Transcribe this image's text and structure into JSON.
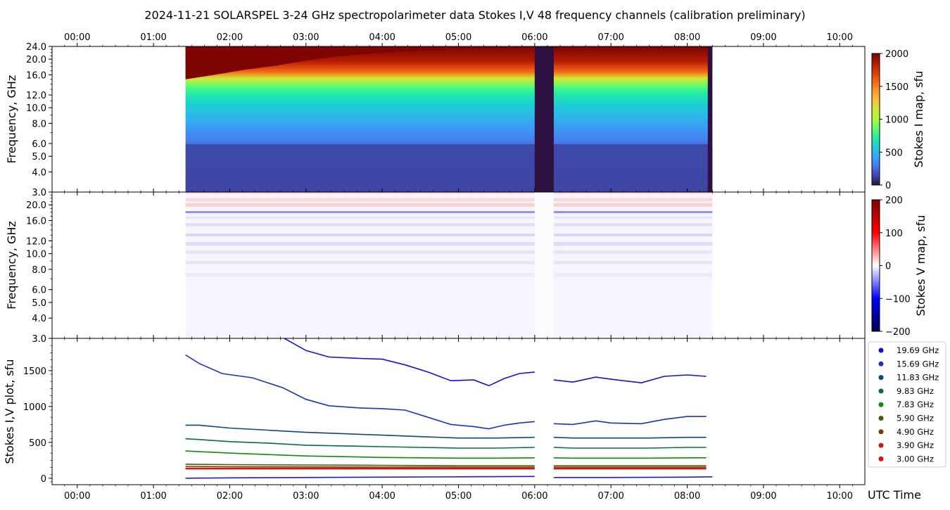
{
  "chart_data": [
    {
      "panel": "stokes-i-map",
      "type": "heatmap",
      "title": "2024-11-21  SOLARSPEL  3-24 GHz spectropolarimeter data   Stokes I,V   48 frequency channels   (calibration preliminary)",
      "ylabel": "Frequency, GHz",
      "colorbar_label": "Stokes I map, sfu",
      "colorbar_ticks": [
        "2000",
        "1500",
        "1000",
        "500",
        "0"
      ],
      "clim": [
        0,
        2000
      ],
      "colormap": "turbo",
      "ylim": [
        3.0,
        24.0
      ],
      "yscale": "log",
      "ytick_labels": [
        "24.0",
        "20.0",
        "16.0",
        "12.0",
        "10.0",
        "8.0",
        "6.0",
        "5.0",
        "4.0",
        "3.0"
      ],
      "xtick_labels": [
        "00:00",
        "01:00",
        "02:00",
        "03:00",
        "04:00",
        "05:00",
        "06:00",
        "07:00",
        "08:00",
        "09:00",
        "10:00"
      ],
      "xlim_hours": [
        -0.33,
        10.33
      ],
      "data_start_hour": 1.42,
      "data_end_hour": 8.33,
      "gaps_hours": [
        [
          6.0,
          6.25
        ],
        [
          8.27,
          8.33
        ]
      ]
    },
    {
      "panel": "stokes-v-map",
      "type": "heatmap",
      "ylabel": "Frequency, GHz",
      "colorbar_label": "Stokes V map, sfu",
      "colorbar_ticks": [
        "200",
        "100",
        "0",
        "−100",
        "−200"
      ],
      "clim": [
        -200,
        200
      ],
      "colormap": "seismic",
      "ylim": [
        3.0,
        24.0
      ],
      "yscale": "log",
      "ytick_labels": [
        "20.0",
        "16.0",
        "12.0",
        "10.0",
        "8.0",
        "6.0",
        "5.0",
        "4.0",
        "3.0"
      ]
    },
    {
      "panel": "stokes-iv-plot",
      "type": "line",
      "ylabel": "Stokes I,V plot, sfu",
      "xlabel": "UTC Time",
      "ylim": [
        -90,
        1950
      ],
      "ytick_labels": [
        "1500",
        "1000",
        "500",
        "0"
      ],
      "xtick_labels": [
        "00:00",
        "01:00",
        "02:00",
        "03:00",
        "04:00",
        "05:00",
        "06:00",
        "07:00",
        "08:00",
        "09:00",
        "10:00"
      ],
      "legend_position": "right",
      "series": [
        {
          "name": "19.69 GHz",
          "color": "#1010e0",
          "x": [
            1.95,
            2.3,
            2.7,
            3.0,
            3.3,
            3.7,
            4.0,
            4.3,
            4.6,
            4.9,
            5.2,
            5.4,
            5.6,
            5.8,
            6.0,
            6.25,
            6.5,
            6.8,
            7.0,
            7.4,
            7.7,
            8.0,
            8.25
          ],
          "y": [
            1960,
            1960,
            1960,
            1780,
            1690,
            1670,
            1660,
            1580,
            1480,
            1360,
            1370,
            1290,
            1390,
            1460,
            1480,
            1370,
            1340,
            1410,
            1380,
            1330,
            1420,
            1440,
            1420
          ]
        },
        {
          "name": "15.69 GHz",
          "color": "#1a33bb",
          "x": [
            1.42,
            1.6,
            1.9,
            2.3,
            2.7,
            3.0,
            3.3,
            3.7,
            4.0,
            4.3,
            4.6,
            4.9,
            5.2,
            5.4,
            5.6,
            5.8,
            6.0,
            6.25,
            6.5,
            6.8,
            7.0,
            7.4,
            7.7,
            8.0,
            8.25
          ],
          "y": [
            1720,
            1600,
            1460,
            1400,
            1260,
            1100,
            1010,
            980,
            970,
            950,
            850,
            750,
            720,
            690,
            740,
            770,
            790,
            760,
            750,
            800,
            770,
            760,
            820,
            860,
            860
          ]
        },
        {
          "name": "11.83 GHz",
          "color": "#0a4a78",
          "x": [
            1.42,
            1.6,
            2.0,
            2.5,
            3.0,
            3.5,
            4.0,
            4.5,
            5.0,
            5.5,
            6.0,
            6.25,
            6.5,
            7.0,
            7.5,
            8.0,
            8.25
          ],
          "y": [
            740,
            740,
            700,
            670,
            640,
            620,
            600,
            580,
            560,
            560,
            570,
            570,
            560,
            560,
            560,
            570,
            570
          ]
        },
        {
          "name": "9.83 GHz",
          "color": "#0a6a4a",
          "x": [
            1.42,
            1.6,
            2.0,
            2.5,
            3.0,
            3.5,
            4.0,
            4.5,
            5.0,
            5.5,
            6.0,
            6.25,
            6.5,
            7.0,
            7.5,
            8.0,
            8.25
          ],
          "y": [
            550,
            540,
            510,
            490,
            460,
            450,
            440,
            430,
            420,
            420,
            430,
            430,
            420,
            420,
            420,
            430,
            430
          ]
        },
        {
          "name": "7.83 GHz",
          "color": "#128a12",
          "x": [
            1.42,
            1.6,
            2.0,
            2.5,
            3.0,
            3.5,
            4.0,
            4.5,
            5.0,
            5.5,
            6.0,
            6.25,
            6.5,
            7.0,
            7.5,
            8.0,
            8.25
          ],
          "y": [
            380,
            370,
            350,
            330,
            310,
            300,
            290,
            285,
            280,
            280,
            285,
            285,
            280,
            280,
            280,
            285,
            285
          ]
        },
        {
          "name": "5.90 GHz",
          "color": "#4a5a05",
          "x": [
            1.42,
            2.0,
            3.0,
            4.0,
            5.0,
            6.0,
            6.25,
            7.0,
            8.0,
            8.25
          ],
          "y": [
            195,
            190,
            185,
            180,
            175,
            175,
            175,
            175,
            175,
            175
          ]
        },
        {
          "name": "4.90 GHz",
          "color": "#7a3a05",
          "x": [
            1.42,
            2.0,
            3.0,
            4.0,
            5.0,
            6.0,
            6.25,
            7.0,
            8.0,
            8.25
          ],
          "y": [
            165,
            160,
            158,
            155,
            155,
            155,
            155,
            155,
            155,
            155
          ]
        },
        {
          "name": "3.90 GHz",
          "color": "#c02010",
          "x": [
            1.42,
            2.0,
            3.0,
            4.0,
            5.0,
            6.0,
            6.25,
            7.0,
            8.0,
            8.25
          ],
          "y": [
            140,
            140,
            140,
            140,
            140,
            140,
            140,
            140,
            140,
            140
          ]
        },
        {
          "name": "3.00 GHz",
          "color": "#e01010",
          "x": [
            1.42,
            2.0,
            3.0,
            4.0,
            5.0,
            6.0,
            6.25,
            7.0,
            8.0,
            8.25
          ],
          "y": [
            130,
            130,
            130,
            130,
            130,
            130,
            130,
            130,
            130,
            130
          ]
        },
        {
          "name": "",
          "color": "#1a1ae0",
          "x": [
            1.42,
            2.0,
            3.0,
            4.0,
            5.0,
            6.0,
            6.25,
            7.0,
            8.0,
            8.33
          ],
          "y": [
            0,
            5,
            10,
            15,
            20,
            25,
            10,
            10,
            15,
            20
          ]
        }
      ]
    }
  ]
}
